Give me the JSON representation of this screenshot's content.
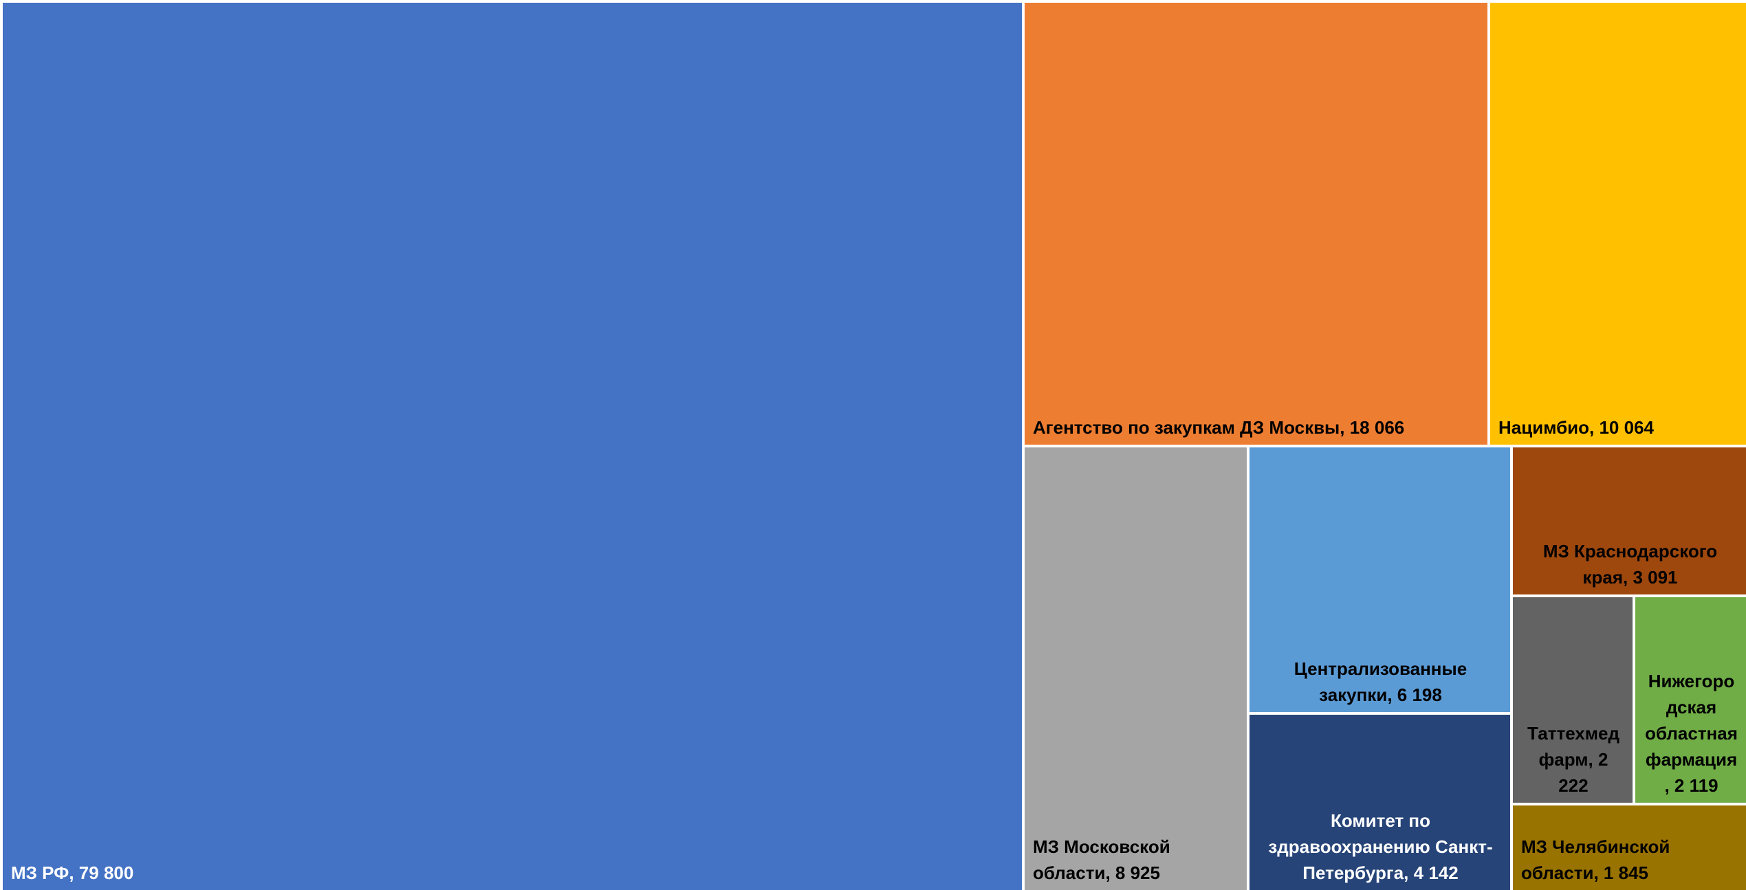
{
  "chart_data": {
    "type": "treemap",
    "title": "",
    "items": [
      {
        "name": "МЗ РФ",
        "value": 79800,
        "label": "МЗ РФ, 79 800",
        "color": "#4472C4",
        "text_color": "#FFFFFF"
      },
      {
        "name": "Агентство по закупкам ДЗ Москвы",
        "value": 18066,
        "label": "Агентство по закупкам  ДЗ Москвы, 18 066",
        "color": "#ED7D31",
        "text_color": "#000000"
      },
      {
        "name": "Нацимбио",
        "value": 10064,
        "label": "Нацимбио, 10 064",
        "color": "#FFC000",
        "text_color": "#000000"
      },
      {
        "name": "МЗ Московской области",
        "value": 8925,
        "label": "МЗ Московской\nобласти, 8 925",
        "color": "#A5A5A5",
        "text_color": "#000000"
      },
      {
        "name": "Централизованные закупки",
        "value": 6198,
        "label": "Централизованные\nзакупки, 6 198",
        "color": "#5B9BD5",
        "text_color": "#000000"
      },
      {
        "name": "Комитет по здравоохранению Санкт-Петербурга",
        "value": 4142,
        "label": "Комитет по\nздравоохранению Санкт-\nПетербурга, 4 142",
        "color": "#264478",
        "text_color": "#FFFFFF"
      },
      {
        "name": "МЗ Краснодарского края",
        "value": 3091,
        "label": "МЗ Краснодарского\nкрая, 3 091",
        "color": "#9E480E",
        "text_color": "#000000"
      },
      {
        "name": "Таттехмед фарм",
        "value": 2222,
        "label": "Таттехмед\nфарм, 2\n222",
        "color": "#636363",
        "text_color": "#000000"
      },
      {
        "name": "Нижегородская областная фармация",
        "value": 2119,
        "label": "Нижегоро\nдская\nобластная\nфармация\n, 2 119",
        "color": "#70AD47",
        "text_color": "#000000"
      },
      {
        "name": "МЗ Челябинской области",
        "value": 1845,
        "label": "МЗ Челябинской\nобласти, 1 845",
        "color": "#997300",
        "text_color": "#000000"
      }
    ]
  }
}
